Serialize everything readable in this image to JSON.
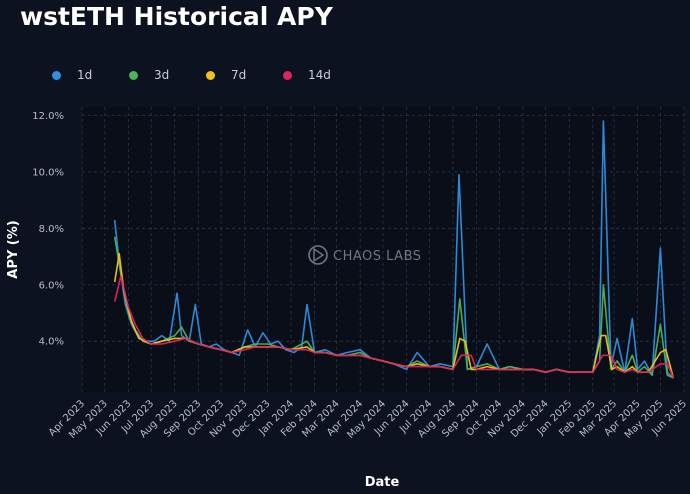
{
  "page": {
    "title": "wstETH Historical APY",
    "watermark": "CHAOS LABS"
  },
  "legend": [
    {
      "label": "1d",
      "color": "#2f8fe0"
    },
    {
      "label": "3d",
      "color": "#4fb35b"
    },
    {
      "label": "7d",
      "color": "#f2c21c"
    },
    {
      "label": "14d",
      "color": "#e0245e"
    }
  ],
  "chart_data": {
    "type": "line",
    "title": "wstETH Historical APY",
    "xlabel": "Date",
    "ylabel": "APY (%)",
    "x_range": [
      "2023-04-01",
      "2025-06-01"
    ],
    "ylim": [
      2.2,
      12.3
    ],
    "y_ticks": [
      4.0,
      6.0,
      8.0,
      10.0,
      12.0
    ],
    "y_tick_labels": [
      "4.0%",
      "6.0%",
      "8.0%",
      "10.0%",
      "12.0%"
    ],
    "x_ticks": [
      "2023-04-01",
      "2023-05-01",
      "2023-06-01",
      "2023-07-01",
      "2023-08-01",
      "2023-09-01",
      "2023-10-01",
      "2023-11-01",
      "2023-12-01",
      "2024-01-01",
      "2024-02-01",
      "2024-03-01",
      "2024-04-01",
      "2024-05-01",
      "2024-06-01",
      "2024-07-01",
      "2024-08-01",
      "2024-09-01",
      "2024-10-01",
      "2024-11-01",
      "2024-12-01",
      "2025-01-01",
      "2025-02-01",
      "2025-03-01",
      "2025-04-01",
      "2025-05-01",
      "2025-06-01"
    ],
    "x_tick_labels": [
      "Apr 2023",
      "May 2023",
      "Jun 2023",
      "Jul 2023",
      "Aug 2023",
      "Sep 2023",
      "Oct 2023",
      "Nov 2023",
      "Dec 2023",
      "Jan 2024",
      "Feb 2024",
      "Mar 2024",
      "Apr 2024",
      "May 2024",
      "Jun 2024",
      "Jul 2024",
      "Aug 2024",
      "Sep 2024",
      "Oct 2024",
      "Nov 2024",
      "Dec 2024",
      "Jan 2025",
      "Feb 2025",
      "Mar 2025",
      "Apr 2025",
      "May 2025",
      "Jun 2025"
    ],
    "grid": true,
    "legend_position": "top-left",
    "series": [
      {
        "name": "1d",
        "color": "#2f8fe0",
        "x": [
          "2023-05-14",
          "2023-05-20",
          "2023-05-28",
          "2023-06-05",
          "2023-06-15",
          "2023-06-25",
          "2023-07-05",
          "2023-07-15",
          "2023-07-25",
          "2023-08-04",
          "2023-08-10",
          "2023-08-20",
          "2023-08-28",
          "2023-09-05",
          "2023-09-15",
          "2023-09-25",
          "2023-10-05",
          "2023-10-15",
          "2023-10-25",
          "2023-11-05",
          "2023-11-15",
          "2023-11-25",
          "2023-12-05",
          "2023-12-15",
          "2023-12-25",
          "2024-01-05",
          "2024-01-15",
          "2024-01-22",
          "2024-02-01",
          "2024-02-15",
          "2024-03-01",
          "2024-03-15",
          "2024-04-01",
          "2024-04-15",
          "2024-05-01",
          "2024-05-15",
          "2024-06-01",
          "2024-06-15",
          "2024-07-01",
          "2024-07-15",
          "2024-08-01",
          "2024-08-09",
          "2024-08-20",
          "2024-09-01",
          "2024-09-15",
          "2024-10-01",
          "2024-10-15",
          "2024-11-01",
          "2024-11-15",
          "2024-12-01",
          "2024-12-15",
          "2025-01-01",
          "2025-01-15",
          "2025-02-01",
          "2025-02-10",
          "2025-02-15",
          "2025-02-25",
          "2025-03-05",
          "2025-03-15",
          "2025-03-25",
          "2025-04-01",
          "2025-04-10",
          "2025-04-20",
          "2025-05-01",
          "2025-05-10",
          "2025-05-18"
        ],
        "values": [
          8.3,
          6.8,
          5.3,
          4.6,
          4.1,
          4.0,
          4.0,
          4.2,
          4.0,
          5.7,
          4.2,
          4.0,
          5.3,
          3.9,
          3.8,
          3.9,
          3.7,
          3.6,
          3.5,
          4.4,
          3.8,
          4.3,
          3.9,
          4.0,
          3.7,
          3.6,
          3.8,
          5.3,
          3.6,
          3.7,
          3.5,
          3.6,
          3.7,
          3.4,
          3.3,
          3.2,
          3.0,
          3.6,
          3.1,
          3.2,
          3.1,
          9.9,
          3.0,
          3.1,
          3.9,
          3.0,
          3.1,
          3.0,
          3.0,
          2.9,
          3.0,
          2.9,
          2.9,
          2.9,
          4.2,
          11.8,
          3.1,
          4.1,
          2.9,
          4.8,
          3.0,
          3.3,
          2.8,
          7.3,
          2.9,
          2.7
        ]
      },
      {
        "name": "3d",
        "color": "#4fb35b",
        "x": [
          "2023-05-14",
          "2023-05-22",
          "2023-06-01",
          "2023-06-10",
          "2023-06-20",
          "2023-07-01",
          "2023-07-15",
          "2023-08-01",
          "2023-08-10",
          "2023-08-20",
          "2023-09-01",
          "2023-09-15",
          "2023-10-01",
          "2023-10-15",
          "2023-11-01",
          "2023-11-15",
          "2023-12-01",
          "2023-12-15",
          "2024-01-01",
          "2024-01-22",
          "2024-02-01",
          "2024-02-15",
          "2024-03-01",
          "2024-03-15",
          "2024-04-01",
          "2024-04-15",
          "2024-05-01",
          "2024-05-15",
          "2024-06-01",
          "2024-06-15",
          "2024-07-01",
          "2024-07-15",
          "2024-08-01",
          "2024-08-10",
          "2024-08-20",
          "2024-09-01",
          "2024-09-15",
          "2024-10-01",
          "2024-10-15",
          "2024-11-01",
          "2024-11-15",
          "2024-12-01",
          "2024-12-15",
          "2025-01-01",
          "2025-01-15",
          "2025-02-01",
          "2025-02-10",
          "2025-02-15",
          "2025-02-25",
          "2025-03-05",
          "2025-03-15",
          "2025-03-25",
          "2025-04-01",
          "2025-04-10",
          "2025-04-20",
          "2025-05-01",
          "2025-05-10",
          "2025-05-18"
        ],
        "values": [
          7.7,
          6.4,
          5.0,
          4.4,
          4.0,
          3.9,
          4.0,
          4.2,
          4.5,
          4.0,
          3.9,
          3.8,
          3.7,
          3.6,
          3.8,
          3.9,
          3.9,
          3.8,
          3.7,
          4.0,
          3.6,
          3.6,
          3.5,
          3.5,
          3.6,
          3.4,
          3.3,
          3.2,
          3.1,
          3.3,
          3.1,
          3.1,
          3.0,
          5.5,
          3.0,
          3.1,
          3.2,
          3.0,
          3.1,
          3.0,
          3.0,
          2.9,
          3.0,
          2.9,
          2.9,
          2.9,
          3.3,
          6.0,
          3.0,
          3.3,
          2.9,
          3.5,
          2.9,
          3.1,
          2.8,
          4.6,
          2.8,
          2.7
        ]
      },
      {
        "name": "7d",
        "color": "#f2c21c",
        "x": [
          "2023-05-14",
          "2023-05-20",
          "2023-05-26",
          "2023-06-05",
          "2023-06-15",
          "2023-07-01",
          "2023-07-15",
          "2023-08-01",
          "2023-08-15",
          "2023-09-01",
          "2023-09-15",
          "2023-10-01",
          "2023-10-15",
          "2023-11-01",
          "2023-11-15",
          "2023-12-01",
          "2023-12-15",
          "2024-01-01",
          "2024-01-22",
          "2024-02-01",
          "2024-02-15",
          "2024-03-01",
          "2024-03-15",
          "2024-04-01",
          "2024-04-15",
          "2024-05-01",
          "2024-05-15",
          "2024-06-01",
          "2024-06-15",
          "2024-07-01",
          "2024-07-15",
          "2024-08-01",
          "2024-08-10",
          "2024-08-17",
          "2024-08-25",
          "2024-09-01",
          "2024-09-15",
          "2024-10-01",
          "2024-10-15",
          "2024-11-01",
          "2024-11-15",
          "2024-12-01",
          "2024-12-15",
          "2025-01-01",
          "2025-01-15",
          "2025-02-01",
          "2025-02-12",
          "2025-02-18",
          "2025-02-26",
          "2025-03-05",
          "2025-03-15",
          "2025-03-25",
          "2025-04-01",
          "2025-04-15",
          "2025-05-01",
          "2025-05-08",
          "2025-05-18"
        ],
        "values": [
          6.1,
          7.1,
          5.8,
          4.7,
          4.1,
          3.9,
          4.0,
          4.1,
          4.1,
          3.9,
          3.8,
          3.7,
          3.6,
          3.8,
          3.8,
          3.8,
          3.8,
          3.7,
          3.8,
          3.6,
          3.6,
          3.5,
          3.5,
          3.5,
          3.4,
          3.3,
          3.2,
          3.1,
          3.2,
          3.1,
          3.1,
          3.0,
          4.1,
          4.0,
          3.0,
          3.0,
          3.1,
          3.0,
          3.0,
          3.0,
          3.0,
          2.9,
          3.0,
          2.9,
          2.9,
          2.9,
          4.2,
          4.2,
          3.0,
          3.1,
          2.9,
          3.1,
          2.9,
          2.9,
          3.6,
          3.7,
          2.7
        ]
      },
      {
        "name": "14d",
        "color": "#e0245e",
        "x": [
          "2023-05-14",
          "2023-05-22",
          "2023-06-01",
          "2023-06-10",
          "2023-06-20",
          "2023-07-01",
          "2023-07-15",
          "2023-08-01",
          "2023-08-15",
          "2023-09-01",
          "2023-09-15",
          "2023-10-01",
          "2023-10-15",
          "2023-11-01",
          "2023-11-15",
          "2023-12-01",
          "2023-12-15",
          "2024-01-01",
          "2024-01-22",
          "2024-02-01",
          "2024-02-15",
          "2024-03-01",
          "2024-03-15",
          "2024-04-01",
          "2024-04-15",
          "2024-05-01",
          "2024-05-15",
          "2024-06-01",
          "2024-06-15",
          "2024-07-01",
          "2024-07-15",
          "2024-08-01",
          "2024-08-12",
          "2024-08-25",
          "2024-09-01",
          "2024-09-15",
          "2024-10-01",
          "2024-10-15",
          "2024-11-01",
          "2024-11-15",
          "2024-12-01",
          "2024-12-15",
          "2025-01-01",
          "2025-01-15",
          "2025-02-01",
          "2025-02-14",
          "2025-02-25",
          "2025-03-05",
          "2025-03-15",
          "2025-03-25",
          "2025-04-01",
          "2025-04-15",
          "2025-05-01",
          "2025-05-10",
          "2025-05-18"
        ],
        "values": [
          5.4,
          6.3,
          5.2,
          4.6,
          4.1,
          3.9,
          3.9,
          4.0,
          4.1,
          3.9,
          3.8,
          3.7,
          3.6,
          3.7,
          3.8,
          3.8,
          3.8,
          3.7,
          3.7,
          3.6,
          3.6,
          3.5,
          3.5,
          3.5,
          3.4,
          3.3,
          3.2,
          3.1,
          3.1,
          3.1,
          3.1,
          3.0,
          3.5,
          3.5,
          3.0,
          3.0,
          3.0,
          3.0,
          3.0,
          3.0,
          2.9,
          3.0,
          2.9,
          2.9,
          2.9,
          3.5,
          3.5,
          3.0,
          2.9,
          3.0,
          2.9,
          2.9,
          3.2,
          3.2,
          2.7
        ]
      }
    ]
  }
}
